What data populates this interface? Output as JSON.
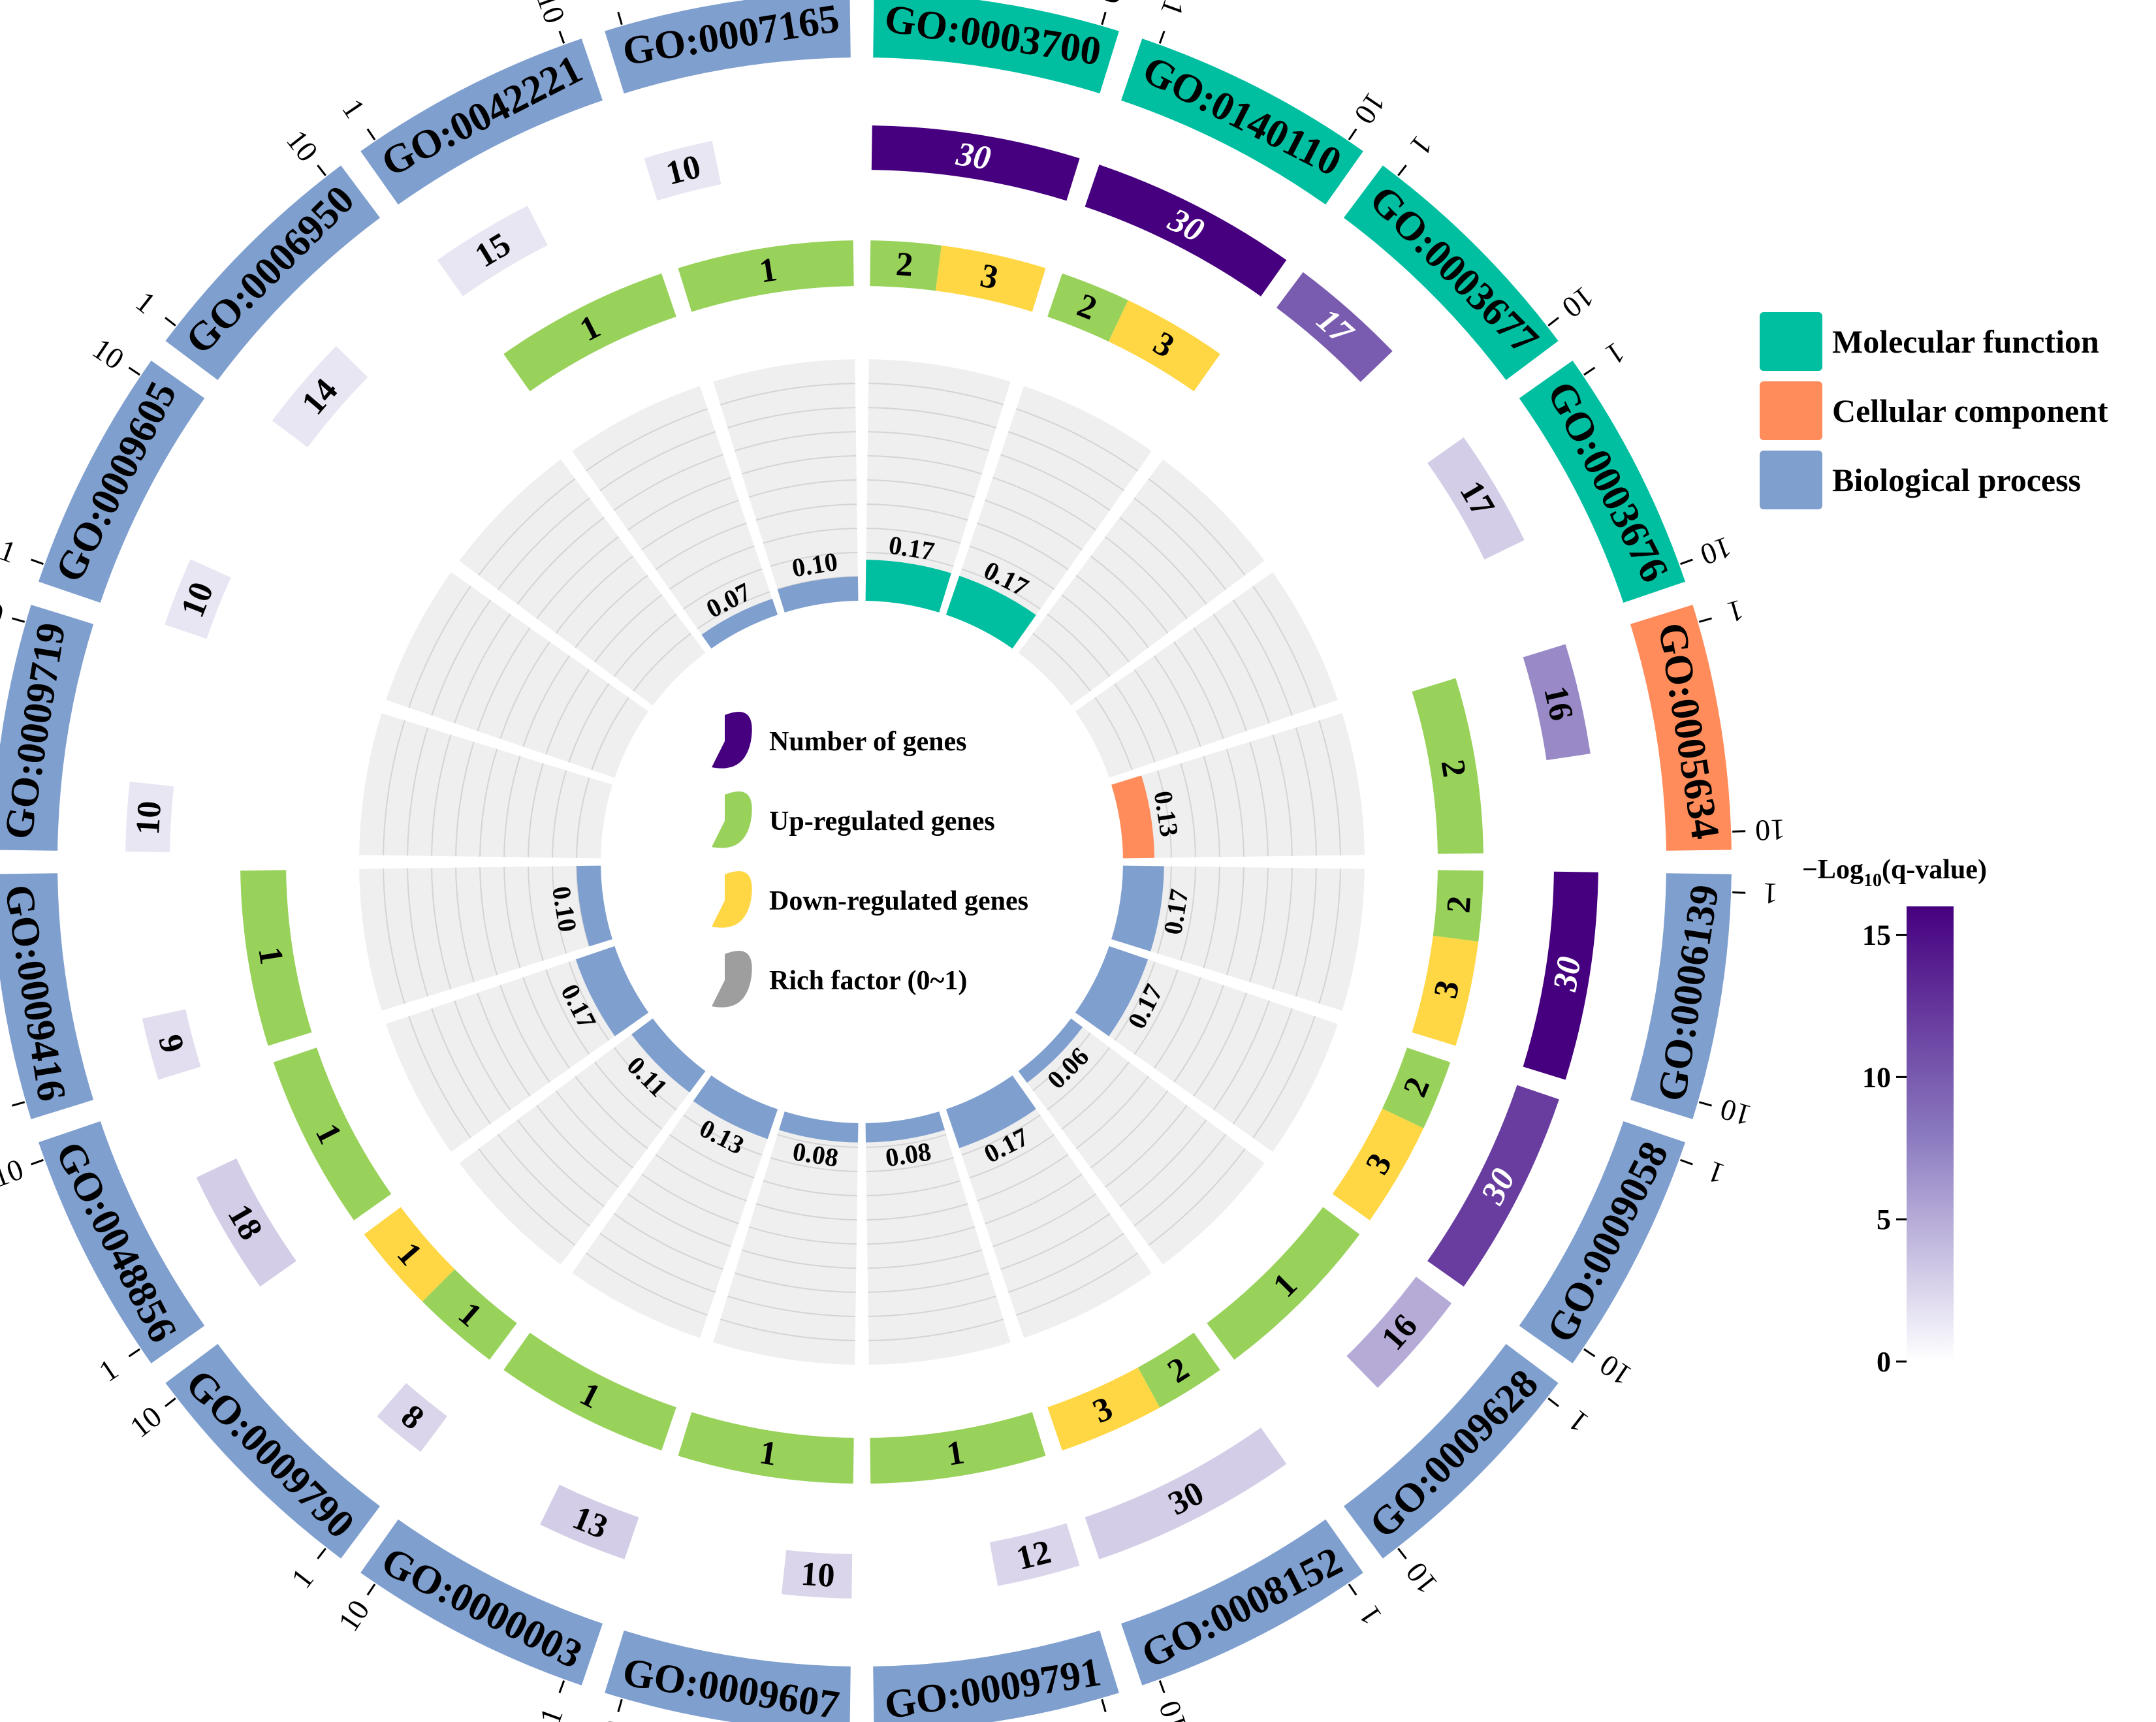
{
  "legend": {
    "categories": [
      {
        "name": "Molecular function",
        "color": "#00BFA0"
      },
      {
        "name": "Cellular component",
        "color": "#FF8C5A"
      },
      {
        "name": "Biological process",
        "color": "#7F9FCF"
      }
    ]
  },
  "center_legend": [
    {
      "label": "Number of genes",
      "color": "#46007F"
    },
    {
      "label": "Up-regulated genes",
      "color": "#99D25A"
    },
    {
      "label": "Down-regulated genes",
      "color": "#FFD745"
    },
    {
      "label": "Rich factor (0~1)",
      "color": "#9E9E9E"
    }
  ],
  "colorbar": {
    "title_prefix": "−Log",
    "title_sub": "10",
    "title_suffix": "(q-value)",
    "ticks": [
      0,
      5,
      10,
      15
    ],
    "min": 0,
    "max": 16,
    "low_color": "#FFFFFF",
    "mid_color": "#8A79BF",
    "high_color": "#46007F"
  },
  "chart_data": {
    "type": "circos",
    "title": "",
    "outer_ticks": [
      "1",
      "10"
    ],
    "up_color": "#99D25A",
    "down_color": "#FFD745",
    "grid_color": "#EFEFEF",
    "grid_line_color": "#D4D4D4",
    "terms": [
      {
        "id": "GO:0003700",
        "category": "Molecular function",
        "number": 30,
        "neglogq": 16,
        "up": 2,
        "down": 3,
        "rich": 0.17
      },
      {
        "id": "GO:0140110",
        "category": "Molecular function",
        "number": 30,
        "neglogq": 16,
        "up": 2,
        "down": 3,
        "rich": 0.17
      },
      {
        "id": "GO:0003677",
        "category": "Molecular function",
        "number": 17,
        "neglogq": 10,
        "up": 0,
        "down": 0,
        "rich": null
      },
      {
        "id": "GO:0003676",
        "category": "Molecular function",
        "number": 17,
        "neglogq": 3,
        "up": 0,
        "down": 0,
        "rich": null
      },
      {
        "id": "GO:0005634",
        "category": "Cellular component",
        "number": 16,
        "neglogq": 7,
        "up": 2,
        "down": 0,
        "rich": 0.13
      },
      {
        "id": "GO:0006139",
        "category": "Biological process",
        "number": 30,
        "neglogq": 16,
        "up": 2,
        "down": 3,
        "rich": 0.17
      },
      {
        "id": "GO:0009058",
        "category": "Biological process",
        "number": 30,
        "neglogq": 12,
        "up": 2,
        "down": 3,
        "rich": 0.17
      },
      {
        "id": "GO:0009628",
        "category": "Biological process",
        "number": 16,
        "neglogq": 5,
        "up": 1,
        "down": 0,
        "rich": 0.06
      },
      {
        "id": "GO:0008152",
        "category": "Biological process",
        "number": 30,
        "neglogq": 3,
        "up": 2,
        "down": 3,
        "rich": 0.17
      },
      {
        "id": "GO:0009791",
        "category": "Biological process",
        "number": 12,
        "neglogq": 2.5,
        "up": 1,
        "down": 0,
        "rich": 0.08
      },
      {
        "id": "GO:0009607",
        "category": "Biological process",
        "number": 10,
        "neglogq": 2.5,
        "up": 1,
        "down": 0,
        "rich": 0.08
      },
      {
        "id": "GO:0000003",
        "category": "Biological process",
        "number": 13,
        "neglogq": 3,
        "up": 1,
        "down": 0,
        "rich": 0.13
      },
      {
        "id": "GO:0009790",
        "category": "Biological process",
        "number": 8,
        "neglogq": 2.5,
        "up": 1,
        "down": 1,
        "rich": 0.11
      },
      {
        "id": "GO:0048856",
        "category": "Biological process",
        "number": 18,
        "neglogq": 3,
        "up": 1,
        "down": 0,
        "rich": 0.17
      },
      {
        "id": "GO:0009416",
        "category": "Biological process",
        "number": 9,
        "neglogq": 2,
        "up": 1,
        "down": 0,
        "rich": 0.1
      },
      {
        "id": "GO:0009719",
        "category": "Biological process",
        "number": 10,
        "neglogq": 1.5,
        "up": 0,
        "down": 0,
        "rich": null
      },
      {
        "id": "GO:0009605",
        "category": "Biological process",
        "number": 10,
        "neglogq": 1.5,
        "up": 0,
        "down": 0,
        "rich": null
      },
      {
        "id": "GO:0006950",
        "category": "Biological process",
        "number": 14,
        "neglogq": 1.5,
        "up": 0,
        "down": 0,
        "rich": null
      },
      {
        "id": "GO:0042221",
        "category": "Biological process",
        "number": 15,
        "neglogq": 1.5,
        "up": 1,
        "down": 0,
        "rich": 0.07
      },
      {
        "id": "GO:0007165",
        "category": "Biological process",
        "number": 10,
        "neglogq": 1.5,
        "up": 1,
        "down": 0,
        "rich": 0.1
      }
    ]
  }
}
